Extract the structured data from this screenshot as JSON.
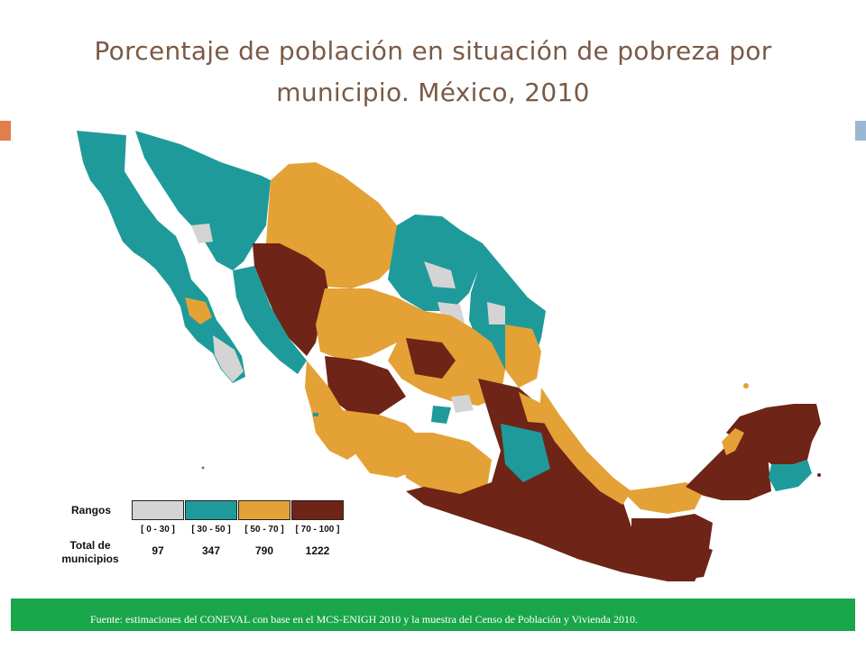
{
  "title": "Porcentaje de población en situación de pobreza por municipio. México, 2010",
  "colors": {
    "range_0_30": "#d4d4d4",
    "range_30_50": "#1f9a9a",
    "range_50_70": "#e3a136",
    "range_70_100": "#6e2416",
    "accent_left": "#e07f49",
    "accent_right": "#9ab7d3",
    "source_bar": "#1aa64a"
  },
  "legend": {
    "rangos_label": "Rangos",
    "total_label": "Total de municipios",
    "ranges": [
      {
        "label": "[ 0 - 30 ]",
        "count": "97",
        "color_key": "range_0_30"
      },
      {
        "label": "[ 30 - 50 ]",
        "count": "347",
        "color_key": "range_30_50"
      },
      {
        "label": "[ 50 - 70 ]",
        "count": "790",
        "color_key": "range_50_70"
      },
      {
        "label": "[ 70 - 100 ]",
        "count": "1222",
        "color_key": "range_70_100"
      }
    ]
  },
  "source": "Fuente: estimaciones del CONEVAL con base en  el MCS-ENIGH 2010 y la muestra del  Censo de Población y Vivienda 2010."
}
